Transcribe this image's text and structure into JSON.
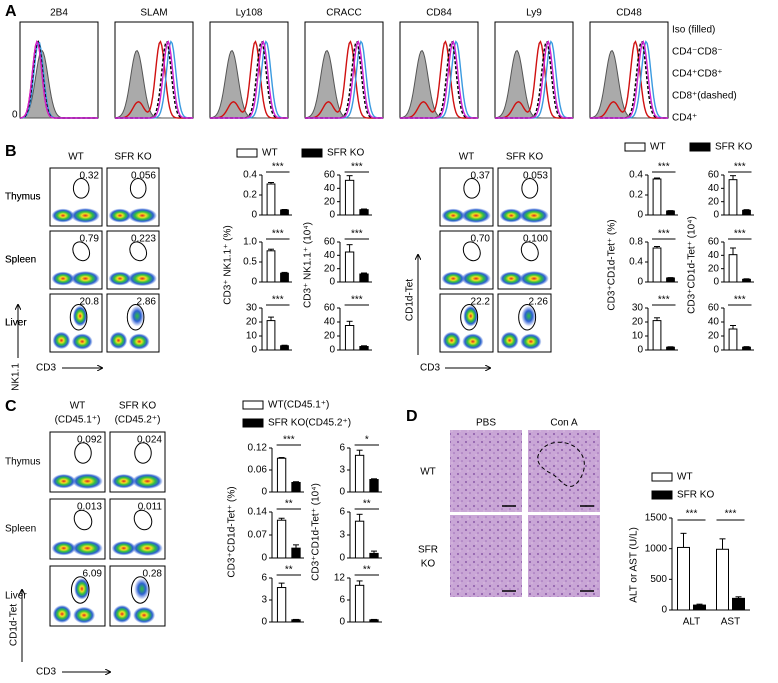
{
  "panel_a": {
    "label": "A",
    "markers": [
      "2B4",
      "SLAM",
      "Ly108",
      "CRACC",
      "CD84",
      "Ly9",
      "CD48"
    ],
    "y_tick": 0,
    "legend": [
      "Iso (filled)",
      "CD4⁻CD8⁻",
      "CD4⁺CD8⁺",
      "CD8⁺(dashed)",
      "CD4⁺"
    ]
  },
  "panel_b": {
    "label": "B",
    "nk_flow": {
      "columns": [
        "WT",
        "SFR KO"
      ],
      "rows": [
        "Thymus",
        "Spleen",
        "Liver"
      ],
      "gates": [
        [
          "0.32",
          "0.056"
        ],
        [
          "0.79",
          "0.223"
        ],
        [
          "20.8",
          "2.86"
        ]
      ],
      "y_label": "NK1.1",
      "x_label": "CD3"
    },
    "nk_bars": {
      "legend": [
        "WT",
        "SFR KO"
      ],
      "y_labels": [
        "CD3⁺ NK1.1⁺ (%)",
        "CD3⁺ NK1.1⁺ (10⁴)"
      ],
      "charts": [
        [
          {
            "ylim": [
              0,
              0.4
            ],
            "yticks": [
              0,
              0.2,
              0.4
            ],
            "values": [
              0.31,
              0.05
            ],
            "errors": [
              0.015,
              0.005
            ],
            "significance": "***"
          },
          {
            "ylim": [
              0,
              60
            ],
            "yticks": [
              0,
              20,
              40,
              60
            ],
            "values": [
              52,
              8
            ],
            "errors": [
              7,
              1
            ],
            "significance": "***"
          }
        ],
        [
          {
            "ylim": [
              0,
              1
            ],
            "yticks": [
              0,
              0.5,
              {
                "value": 1,
                "label": "1.0"
              }
            ],
            "values": [
              0.78,
              0.22
            ],
            "errors": [
              0.04,
              0.02
            ],
            "significance": "***"
          },
          {
            "ylim": [
              0,
              60
            ],
            "yticks": [
              0,
              20,
              40,
              60
            ],
            "values": [
              45,
              12
            ],
            "errors": [
              11,
              1.5
            ],
            "significance": "***"
          }
        ],
        [
          {
            "ylim": [
              0,
              30
            ],
            "yticks": [
              0,
              10,
              20,
              30
            ],
            "values": [
              21,
              3
            ],
            "errors": [
              2.5,
              0.4
            ],
            "significance": "***"
          },
          {
            "ylim": [
              0,
              60
            ],
            "yticks": [
              0,
              20,
              40,
              60
            ],
            "values": [
              35,
              5
            ],
            "errors": [
              6,
              1
            ],
            "significance": "***"
          }
        ]
      ]
    },
    "tet_flow": {
      "columns": [
        "WT",
        "SFR KO"
      ],
      "rows": [
        "Thymus",
        "Spleen",
        "Liver"
      ],
      "gates": [
        [
          "0.37",
          "0.053"
        ],
        [
          "0.70",
          "0.100"
        ],
        [
          "22.2",
          "2.26"
        ]
      ],
      "y_label": "CD1d-Tet",
      "x_label": "CD3"
    },
    "tet_bars": {
      "legend": [
        "WT",
        "SFR KO"
      ],
      "y_labels": [
        "CD3⁺CD1d-Tet⁺ (%)",
        "CD3⁺CD1d-Tet⁺ (10⁴)"
      ],
      "charts": [
        [
          {
            "ylim": [
              0,
              0.4
            ],
            "yticks": [
              0,
              0.2,
              0.4
            ],
            "values": [
              0.36,
              0.04
            ],
            "errors": [
              0.01,
              0.004
            ],
            "significance": "***"
          },
          {
            "ylim": [
              0,
              60
            ],
            "yticks": [
              0,
              20,
              40,
              60
            ],
            "values": [
              53,
              7
            ],
            "errors": [
              6,
              1
            ],
            "significance": "***"
          }
        ],
        [
          {
            "ylim": [
              0,
              0.8
            ],
            "yticks": [
              0,
              0.4,
              0.8
            ],
            "values": [
              0.68,
              0.08
            ],
            "errors": [
              0.03,
              0.008
            ],
            "significance": "***"
          },
          {
            "ylim": [
              0,
              60
            ],
            "yticks": [
              0,
              20,
              40,
              60
            ],
            "values": [
              41,
              4
            ],
            "errors": [
              10,
              0.8
            ],
            "significance": "***"
          }
        ],
        [
          {
            "ylim": [
              0,
              30
            ],
            "yticks": [
              0,
              10,
              20,
              30
            ],
            "values": [
              21,
              2
            ],
            "errors": [
              2,
              0.3
            ],
            "significance": "***"
          },
          {
            "ylim": [
              0,
              60
            ],
            "yticks": [
              0,
              20,
              40,
              60
            ],
            "values": [
              30,
              4
            ],
            "errors": [
              5,
              0.8
            ],
            "significance": "***"
          }
        ]
      ]
    }
  },
  "panel_c": {
    "label": "C",
    "flow": {
      "columns": [
        [
          "WT",
          "(CD45.1⁺)"
        ],
        [
          "SFR KO",
          "(CD45.2⁺)"
        ]
      ],
      "rows": [
        "Thymus",
        "Spleen",
        "Liver"
      ],
      "gates": [
        [
          "0.092",
          "0.024"
        ],
        [
          "0.013",
          "0.011"
        ],
        [
          "6.09",
          "0.28"
        ]
      ],
      "y_label": "CD1d-Tet",
      "x_label": "CD3"
    },
    "bars": {
      "legend": [
        "WT(CD45.1⁺)",
        "SFR KO(CD45.2⁺)"
      ],
      "y_labels": [
        "CD3⁺CD1d-Tet⁺ (%)",
        "CD3⁺CD1d-Tet⁺ (10⁴)"
      ],
      "charts": [
        [
          {
            "ylim": [
              0,
              0.12
            ],
            "yticks": [
              0,
              0.06,
              0.12
            ],
            "values": [
              0.092,
              0.026
            ],
            "errors": [
              0.002,
              0.002
            ],
            "significance": "***"
          },
          {
            "ylim": [
              0,
              6
            ],
            "yticks": [
              0,
              3,
              6
            ],
            "values": [
              5,
              1.7
            ],
            "errors": [
              0.7,
              0.1
            ],
            "significance": "*"
          }
        ],
        [
          {
            "ylim": [
              0,
              0.14
            ],
            "yticks": [
              0,
              0.07,
              0.14
            ],
            "values": [
              0.115,
              0.03
            ],
            "errors": [
              0.006,
              0.01
            ],
            "significance": "**"
          },
          {
            "ylim": [
              0,
              6
            ],
            "yticks": [
              0,
              3,
              6
            ],
            "values": [
              4.8,
              0.6
            ],
            "errors": [
              0.9,
              0.3
            ],
            "significance": "**"
          }
        ],
        [
          {
            "ylim": [
              0,
              6
            ],
            "yticks": [
              0,
              3,
              6
            ],
            "values": [
              4.7,
              0.3
            ],
            "errors": [
              0.6,
              0.05
            ],
            "significance": "**"
          },
          {
            "ylim": [
              0,
              12
            ],
            "yticks": [
              0,
              6,
              12
            ],
            "values": [
              10,
              0.6
            ],
            "errors": [
              1.2,
              0.1
            ],
            "significance": "**"
          }
        ]
      ]
    }
  },
  "panel_d": {
    "label": "D",
    "columns": [
      "PBS",
      "Con A"
    ],
    "rows": [
      [
        "WT"
      ],
      [
        "SFR",
        "KO"
      ]
    ],
    "chart": {
      "categories": [
        "ALT",
        "AST"
      ],
      "series": [
        {
          "name": "WT",
          "values": [
            1020,
            990
          ],
          "errors": [
            230,
            170
          ]
        },
        {
          "name": "SFR KO",
          "values": [
            80,
            190
          ],
          "errors": [
            15,
            25
          ]
        }
      ],
      "ylim": [
        0,
        1500
      ],
      "yticks": [
        0,
        500,
        1000,
        1500
      ],
      "y_label": "ALT or AST (U/L)",
      "significance": [
        "***",
        "***"
      ]
    }
  }
}
